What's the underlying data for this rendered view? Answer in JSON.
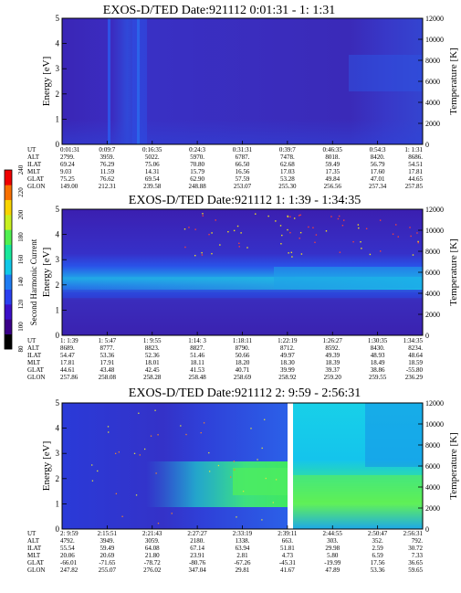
{
  "chart_data": {
    "type": "heatmap",
    "colorbar": {
      "label": "Second Harmonic Current",
      "ticks": [
        "80",
        "100",
        "120",
        "140",
        "160",
        "180",
        "200",
        "220",
        "240"
      ],
      "colors": [
        "#000000",
        "#3a0088",
        "#3b0fc8",
        "#2a40f0",
        "#1f7cf2",
        "#10c8e8",
        "#18e89c",
        "#50f050",
        "#c8f020",
        "#f8d400",
        "#f87000",
        "#f00000"
      ]
    },
    "panels": [
      {
        "title": "EXOS-D/TED   Date:921112  0:01:31 - 1: 1:31",
        "ylabel": "Energy [eV]",
        "y2label": "Temperature [K]",
        "yticks": [
          "0",
          "1",
          "2",
          "3",
          "4",
          "5"
        ],
        "y2ticks": [
          "0",
          "2000",
          "4000",
          "6000",
          "8000",
          "10000",
          "12000"
        ],
        "rows": [
          {
            "label": "UT",
            "values": [
              "0:01:31",
              "0:09:7",
              "0:16:35",
              "0:24:3",
              "0:31:31",
              "0:39:7",
              "0:46:35",
              "0:54:3",
              "1: 1:31"
            ]
          },
          {
            "label": "ALT",
            "values": [
              "2799.",
              "3959.",
              "5022.",
              "5970.",
              "6787.",
              "7478.",
              "8018.",
              "8420.",
              "8686."
            ]
          },
          {
            "label": "ILAT",
            "values": [
              "69.24",
              "76.29",
              "75.06",
              "70.80",
              "66.50",
              "62.68",
              "59.49",
              "56.79",
              "54.51"
            ]
          },
          {
            "label": "MLT",
            "values": [
              "9.03",
              "11.59",
              "14.31",
              "15.79",
              "16.56",
              "17.03",
              "17.35",
              "17.60",
              "17.81"
            ]
          },
          {
            "label": "GLAT",
            "values": [
              "75.25",
              "76.62",
              "69.54",
              "62.90",
              "57.59",
              "53.28",
              "49.84",
              "47.01",
              "44.65"
            ]
          },
          {
            "label": "GLON",
            "values": [
              "149.00",
              "212.31",
              "239.58",
              "248.88",
              "253.07",
              "255.30",
              "256.56",
              "257.34",
              "257.85"
            ]
          }
        ]
      },
      {
        "title": "EXOS-D/TED   Date:921112  1: 1:39 - 1:34:35",
        "ylabel": "Energy [eV]",
        "y2label": "Temperature [K]",
        "yticks": [
          "0",
          "1",
          "2",
          "3",
          "4",
          "5"
        ],
        "y2ticks": [
          "0",
          "2000",
          "4000",
          "6000",
          "8000",
          "10000",
          "12000"
        ],
        "rows": [
          {
            "label": "UT",
            "values": [
              "1: 1:39",
              "1: 5:47",
              "1: 9:55",
              "1:14: 3",
              "1:18:11",
              "1:22:19",
              "1:26:27",
              "1:30:35",
              "1:34:35"
            ]
          },
          {
            "label": "ALT",
            "values": [
              "8689.",
              "8777.",
              "8823.",
              "8827.",
              "8790.",
              "8712.",
              "8592.",
              "8430.",
              "8234."
            ]
          },
          {
            "label": "ILAT",
            "values": [
              "54.47",
              "53.36",
              "52.36",
              "51.46",
              "50.66",
              "49.97",
              "49.39",
              "48.93",
              "48.64"
            ]
          },
          {
            "label": "MLT",
            "values": [
              "17.81",
              "17.91",
              "18.01",
              "18.11",
              "18.20",
              "18.30",
              "18.39",
              "18.49",
              "18.59"
            ]
          },
          {
            "label": "GLAT",
            "values": [
              "44.61",
              "43.48",
              "42.45",
              "41.53",
              "40.71",
              "39.99",
              "39.37",
              "38.86",
              "-55.80"
            ]
          },
          {
            "label": "GLON",
            "values": [
              "257.86",
              "258.08",
              "258.28",
              "258.48",
              "258.69",
              "258.92",
              "259.20",
              "259.55",
              "236.29"
            ]
          }
        ]
      },
      {
        "title": "EXOS-D/TED   Date:921112  2: 9:59 - 2:56:31",
        "ylabel": "Energy [eV]",
        "y2label": "Temperature [K]",
        "yticks": [
          "0",
          "1",
          "2",
          "3",
          "4",
          "5"
        ],
        "y2ticks": [
          "0",
          "2000",
          "4000",
          "6000",
          "8000",
          "10000",
          "12000"
        ],
        "rows": [
          {
            "label": "UT",
            "values": [
              "2: 9:59",
              "2:15:51",
              "2:21:43",
              "2:27:27",
              "2:33:19",
              "2:39:11",
              "2:44:55",
              "2:50:47",
              "2:56:31"
            ]
          },
          {
            "label": "ALT",
            "values": [
              "4792.",
              "3949.",
              "3059.",
              "2180.",
              "1338.",
              "663.",
              "303.",
              "352.",
              "792."
            ]
          },
          {
            "label": "ILAT",
            "values": [
              "55.54",
              "59.49",
              "64.08",
              "67.14",
              "63.94",
              "51.81",
              "29.98",
              "2.59",
              "30.72"
            ]
          },
          {
            "label": "MLT",
            "values": [
              "20.06",
              "20.69",
              "21.80",
              "23.91",
              "2.81",
              "4.73",
              "5.80",
              "6.59",
              "7.33"
            ]
          },
          {
            "label": "GLAT",
            "values": [
              "-66.01",
              "-71.65",
              "-78.72",
              "-80.76",
              "-67.26",
              "-45.31",
              "-19.99",
              "17.56",
              "36.65"
            ]
          },
          {
            "label": "GLON",
            "values": [
              "247.82",
              "255.07",
              "276.02",
              "347.04",
              "29.81",
              "41.67",
              "47.89",
              "53.36",
              "59.65"
            ]
          }
        ]
      }
    ]
  }
}
